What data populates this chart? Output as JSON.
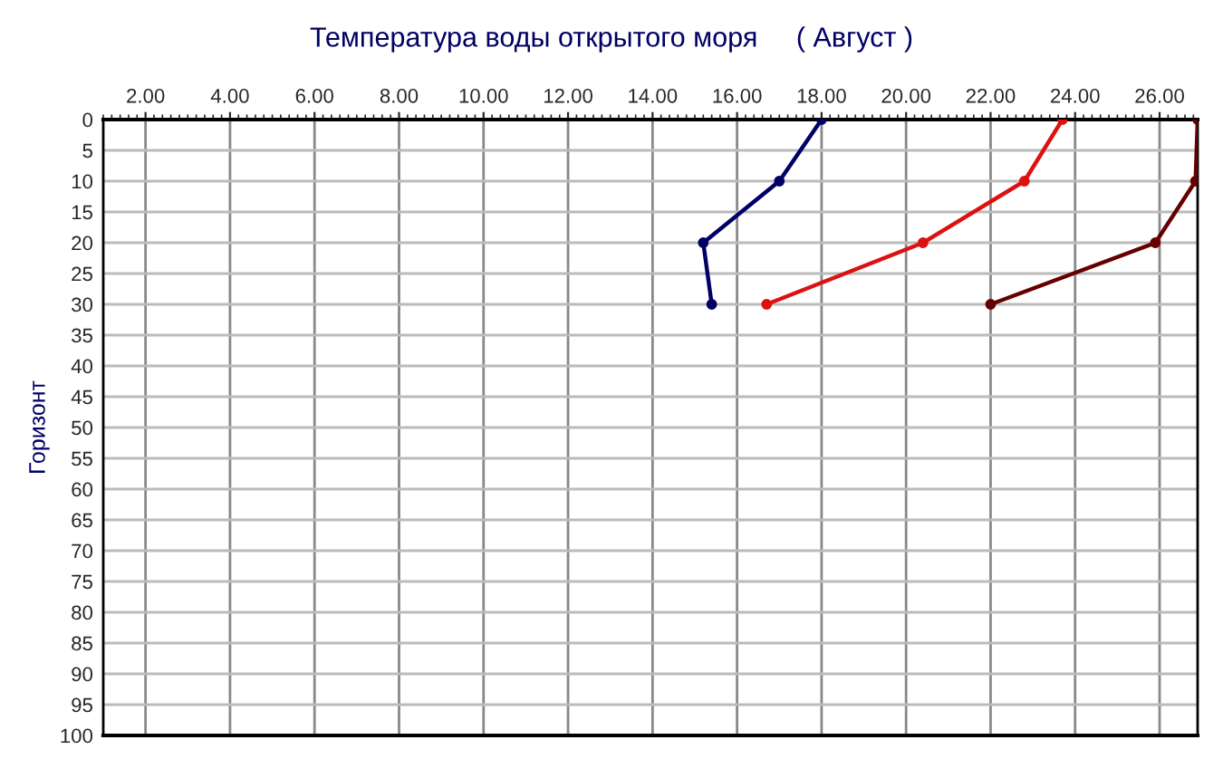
{
  "chart_data": {
    "type": "line",
    "title": "Температура воды открытого моря     ( Август )",
    "ylabel": "Горизонт",
    "series": [
      {
        "color": "#000066",
        "x": [
          18.0,
          17.0,
          15.2,
          15.4
        ],
        "values": [
          0,
          10,
          20,
          30
        ]
      },
      {
        "color": "#dd1111",
        "x": [
          23.7,
          22.8,
          20.4,
          16.7
        ],
        "values": [
          0,
          10,
          20,
          30
        ]
      },
      {
        "color": "#660000",
        "x": [
          26.9,
          26.85,
          25.9,
          22.0
        ],
        "values": [
          0,
          10,
          20,
          30
        ]
      }
    ],
    "xlim": [
      1.0,
      26.9
    ],
    "ylim": [
      100,
      0
    ],
    "xticks": [
      {
        "value": 2,
        "label": "2.00"
      },
      {
        "value": 4,
        "label": "4.00"
      },
      {
        "value": 6,
        "label": "6.00"
      },
      {
        "value": 8,
        "label": "8.00"
      },
      {
        "value": 10,
        "label": "10.00"
      },
      {
        "value": 12,
        "label": "12.00"
      },
      {
        "value": 14,
        "label": "14.00"
      },
      {
        "value": 16,
        "label": "16.00"
      },
      {
        "value": 18,
        "label": "18.00"
      },
      {
        "value": 20,
        "label": "20.00"
      },
      {
        "value": 22,
        "label": "22.00"
      },
      {
        "value": 24,
        "label": "24.00"
      },
      {
        "value": 26,
        "label": "26.00"
      }
    ],
    "yticks": [
      0,
      5,
      10,
      15,
      20,
      25,
      30,
      35,
      40,
      45,
      50,
      55,
      60,
      65,
      70,
      75,
      80,
      85,
      90,
      95,
      100
    ],
    "grid": true,
    "marker": "circle",
    "line_style": "solid",
    "legend": false
  }
}
